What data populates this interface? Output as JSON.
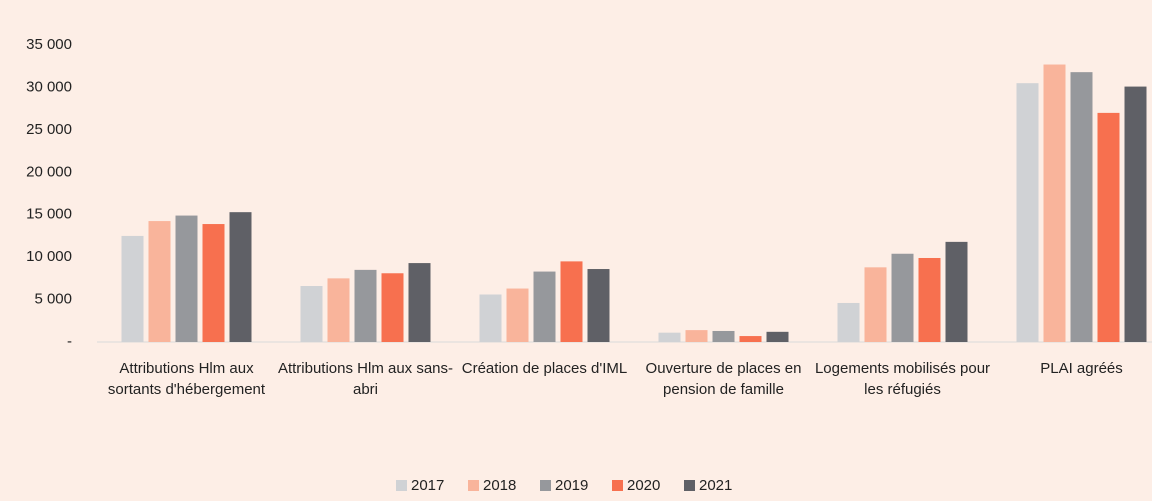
{
  "chart_data": {
    "type": "bar",
    "categories": [
      "Attributions Hlm aux sortants d'hébergement",
      "Attributions Hlm aux sans-abri",
      "Création de places d'IML",
      "Ouverture de places en pension de famille",
      "Logements mobilisés pour les réfugiés",
      "PLAI agréés"
    ],
    "series": [
      {
        "name": "2017",
        "color": "#d0d2d5",
        "values": [
          12500,
          6600,
          5600,
          1100,
          4600,
          30500
        ]
      },
      {
        "name": "2018",
        "color": "#f9b49b",
        "values": [
          14250,
          7500,
          6300,
          1400,
          8800,
          32700
        ]
      },
      {
        "name": "2019",
        "color": "#96989c",
        "values": [
          14900,
          8500,
          8300,
          1300,
          10400,
          31800
        ]
      },
      {
        "name": "2020",
        "color": "#f7704f",
        "values": [
          13900,
          8100,
          9500,
          700,
          9900,
          27000
        ]
      },
      {
        "name": "2021",
        "color": "#5f6066",
        "values": [
          15300,
          9300,
          8600,
          1200,
          11800,
          30100
        ]
      }
    ],
    "ylim": [
      0,
      35000
    ],
    "yticks": [
      {
        "value": 0,
        "label": "-"
      },
      {
        "value": 5000,
        "label": "5 000"
      },
      {
        "value": 10000,
        "label": "10 000"
      },
      {
        "value": 15000,
        "label": "15 000"
      },
      {
        "value": 20000,
        "label": "20 000"
      },
      {
        "value": 25000,
        "label": "25 000"
      },
      {
        "value": 30000,
        "label": "30 000"
      },
      {
        "value": 35000,
        "label": "35 000"
      }
    ],
    "legend": "bottom",
    "grid": false
  }
}
